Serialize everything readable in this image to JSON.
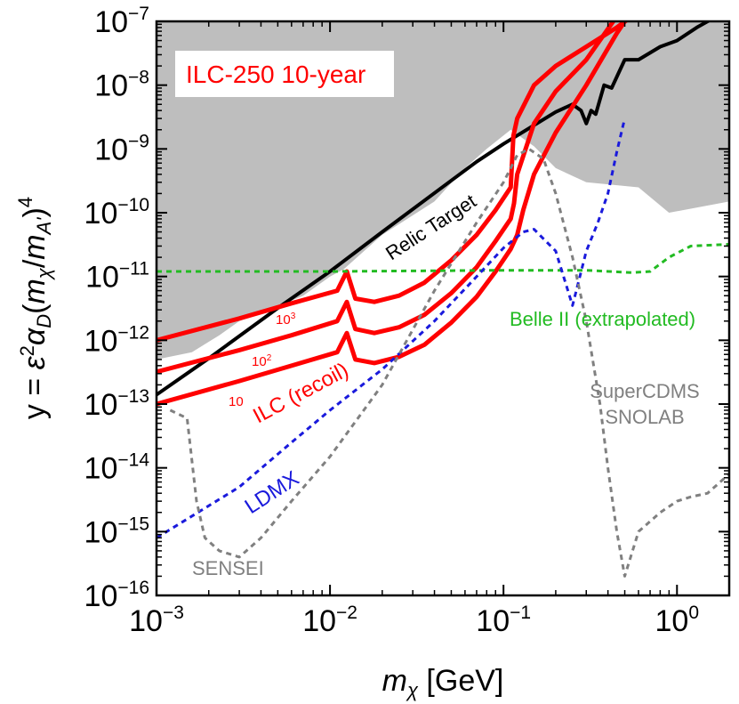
{
  "chart_data": {
    "type": "line",
    "title": "ILC-250 10-year",
    "xlabel": "m_χ [GeV]",
    "ylabel": "y = ε²α_D(m_χ/m_A')⁴",
    "xscale": "log",
    "yscale": "log",
    "xlim": [
      0.001,
      2.0
    ],
    "ylim": [
      1e-16,
      1e-07
    ],
    "x_ticks": [
      {
        "value": 0.001,
        "base": "10",
        "exp": "−3"
      },
      {
        "value": 0.01,
        "base": "10",
        "exp": "−2"
      },
      {
        "value": 0.1,
        "base": "10",
        "exp": "−1"
      },
      {
        "value": 1,
        "base": "10",
        "exp": "0"
      }
    ],
    "y_ticks": [
      {
        "value": 1e-16,
        "base": "10",
        "exp": "−16"
      },
      {
        "value": 1e-15,
        "base": "10",
        "exp": "−15"
      },
      {
        "value": 1e-14,
        "base": "10",
        "exp": "−14"
      },
      {
        "value": 1e-13,
        "base": "10",
        "exp": "−13"
      },
      {
        "value": 1e-12,
        "base": "10",
        "exp": "−12"
      },
      {
        "value": 1e-11,
        "base": "10",
        "exp": "−11"
      },
      {
        "value": 1e-10,
        "base": "10",
        "exp": "−10"
      },
      {
        "value": 1e-09,
        "base": "10",
        "exp": "−9"
      },
      {
        "value": 1e-08,
        "base": "10",
        "exp": "−8"
      },
      {
        "value": 1e-07,
        "base": "10",
        "exp": "−7"
      }
    ],
    "regions": [
      {
        "name": "excluded-existing",
        "color": "#bebebe",
        "x": [
          0.001,
          0.0016,
          0.0023,
          0.003,
          0.0045,
          0.007,
          0.01,
          0.012,
          0.02,
          0.04,
          0.06,
          0.08,
          0.11,
          0.15,
          0.2,
          0.3,
          0.6,
          0.9,
          2.0,
          2.0
        ],
        "y": [
          5e-13,
          6.5e-13,
          1.2e-12,
          2e-12,
          3e-12,
          5e-12,
          1e-11,
          1.3e-11,
          4.5e-11,
          1.5e-10,
          5e-10,
          1e-09,
          2e-09,
          1.1e-09,
          5e-10,
          3e-10,
          2.5e-10,
          1e-10,
          1.5e-10,
          1e-07
        ]
      }
    ],
    "series": [
      {
        "name": "Relic Target",
        "color": "#000000",
        "style": "solid",
        "x": [
          0.001,
          0.002,
          0.005,
          0.01,
          0.02,
          0.05,
          0.07,
          0.1,
          0.2,
          0.25,
          0.28,
          0.3,
          0.32,
          0.34,
          0.38,
          0.42,
          0.5,
          0.6,
          0.8,
          1.0,
          1.3,
          1.6
        ],
        "y": [
          1.4e-13,
          5.2e-13,
          3.2e-12,
          1.2e-11,
          5e-11,
          3.2e-10,
          6.3e-10,
          1.2e-09,
          3.8e-09,
          5e-09,
          4e-09,
          2.5e-09,
          4e-09,
          3.5e-09,
          1e-08,
          9e-09,
          2.5e-08,
          2.5e-08,
          4e-08,
          5e-08,
          8e-08,
          1.1e-07
        ]
      },
      {
        "name": "ILC (recoil) 10^3",
        "color": "#ff0000",
        "style": "solid",
        "x": [
          0.001,
          0.003,
          0.006,
          0.011,
          0.0125,
          0.014,
          0.018,
          0.025,
          0.035,
          0.05,
          0.07,
          0.09,
          0.11,
          0.114,
          0.12,
          0.15,
          0.2,
          0.3,
          0.45,
          0.55
        ],
        "y": [
          1e-12,
          2.2e-12,
          3.8e-12,
          6e-12,
          1.2e-11,
          4.5e-12,
          4e-12,
          5e-12,
          8e-12,
          1.8e-11,
          4.5e-11,
          1.1e-10,
          2.5e-10,
          1.6e-09,
          3e-09,
          1e-08,
          2e-08,
          4e-08,
          8e-08,
          1.2e-07
        ]
      },
      {
        "name": "ILC (recoil) 10^2",
        "color": "#ff0000",
        "style": "solid",
        "x": [
          0.001,
          0.003,
          0.006,
          0.011,
          0.0125,
          0.014,
          0.018,
          0.025,
          0.035,
          0.05,
          0.07,
          0.09,
          0.11,
          0.115,
          0.12,
          0.15,
          0.2,
          0.3,
          0.45
        ],
        "y": [
          3.2e-13,
          7e-13,
          1.2e-12,
          2e-12,
          4e-12,
          1.5e-12,
          1.3e-12,
          1.6e-12,
          2.5e-12,
          5.5e-12,
          1.4e-11,
          3.6e-11,
          8e-11,
          1.4e-10,
          4e-10,
          2.5e-09,
          8e-09,
          2.5e-08,
          1.2e-07
        ]
      },
      {
        "name": "ILC (recoil) 10",
        "color": "#ff0000",
        "style": "solid",
        "x": [
          0.001,
          0.003,
          0.006,
          0.011,
          0.0125,
          0.014,
          0.018,
          0.025,
          0.035,
          0.05,
          0.07,
          0.09,
          0.11,
          0.12,
          0.13,
          0.15,
          0.2,
          0.3,
          0.45,
          0.5
        ],
        "y": [
          1e-13,
          2.3e-13,
          4e-13,
          6.5e-13,
          1.3e-12,
          5e-13,
          4.4e-13,
          5.5e-13,
          8.5e-13,
          1.9e-12,
          4.8e-12,
          1.2e-11,
          2.7e-11,
          4.5e-11,
          1.1e-10,
          4e-10,
          1.8e-09,
          1e-08,
          6.5e-08,
          1e-07
        ]
      },
      {
        "name": "Belle II (extrapolated)",
        "color": "#22bb22",
        "style": "dashed",
        "x": [
          0.001,
          0.01,
          0.1,
          0.3,
          0.55,
          0.7,
          0.9,
          1.2,
          2.0
        ],
        "y": [
          1.2e-11,
          1.2e-11,
          1.25e-11,
          1.25e-11,
          1.15e-11,
          1.2e-11,
          2e-11,
          3e-11,
          3.2e-11
        ]
      },
      {
        "name": "LDMX",
        "color": "#1a1adc",
        "style": "dashed",
        "x": [
          0.001,
          0.003,
          0.006,
          0.01,
          0.02,
          0.04,
          0.07,
          0.1,
          0.13,
          0.15,
          0.2,
          0.25,
          0.3,
          0.35,
          0.4,
          0.45,
          0.5
        ],
        "y": [
          8e-16,
          5e-15,
          2.5e-14,
          8e-14,
          3.5e-13,
          2e-12,
          1e-11,
          2.8e-11,
          5e-11,
          5.5e-11,
          2.5e-11,
          3.5e-12,
          2.5e-11,
          7e-11,
          2e-10,
          9e-10,
          3e-09
        ]
      },
      {
        "name": "SENSEI / SuperCDMS SNOLAB",
        "color": "#808080",
        "style": "dashed",
        "x": [
          0.0012,
          0.0015,
          0.0017,
          0.0019,
          0.0023,
          0.003,
          0.004,
          0.006,
          0.01,
          0.02,
          0.04,
          0.07,
          0.1,
          0.12,
          0.14,
          0.17,
          0.2,
          0.25,
          0.3,
          0.36,
          0.4,
          0.45,
          0.5,
          0.6,
          0.8,
          1.0,
          1.2,
          1.5,
          2.0
        ],
        "y": [
          8e-14,
          6e-14,
          3e-15,
          8e-16,
          5e-16,
          4e-16,
          8e-16,
          3e-15,
          1.5e-14,
          2e-13,
          6e-12,
          7e-11,
          3e-10,
          8e-10,
          1e-09,
          7e-10,
          2e-10,
          2e-11,
          2e-12,
          1e-13,
          1e-14,
          1e-15,
          2e-16,
          1e-15,
          2e-15,
          3e-15,
          3.5e-15,
          4e-15,
          8e-15
        ]
      }
    ],
    "annotations": {
      "legend_title": "ILC-250 10-year",
      "relic": "Relic Target",
      "ilc_recoil": "ILC (recoil)",
      "lbl_1e3_base": "10",
      "lbl_1e3_exp": "3",
      "lbl_1e2_base": "10",
      "lbl_1e2_exp": "2",
      "lbl_10": "10",
      "belle": "Belle II (extrapolated)",
      "ldmx": "LDMX",
      "sensei": "SENSEI",
      "supercdms_1": "SuperCDMS",
      "supercdms_2": "SNOLAB"
    },
    "grid": false,
    "legend": "top-left"
  },
  "colors": {
    "relic": "#000000",
    "ilc": "#ff0000",
    "belle": "#22bb22",
    "ldmx": "#1a1adc",
    "grey": "#808080",
    "excluded": "#bebebe"
  }
}
